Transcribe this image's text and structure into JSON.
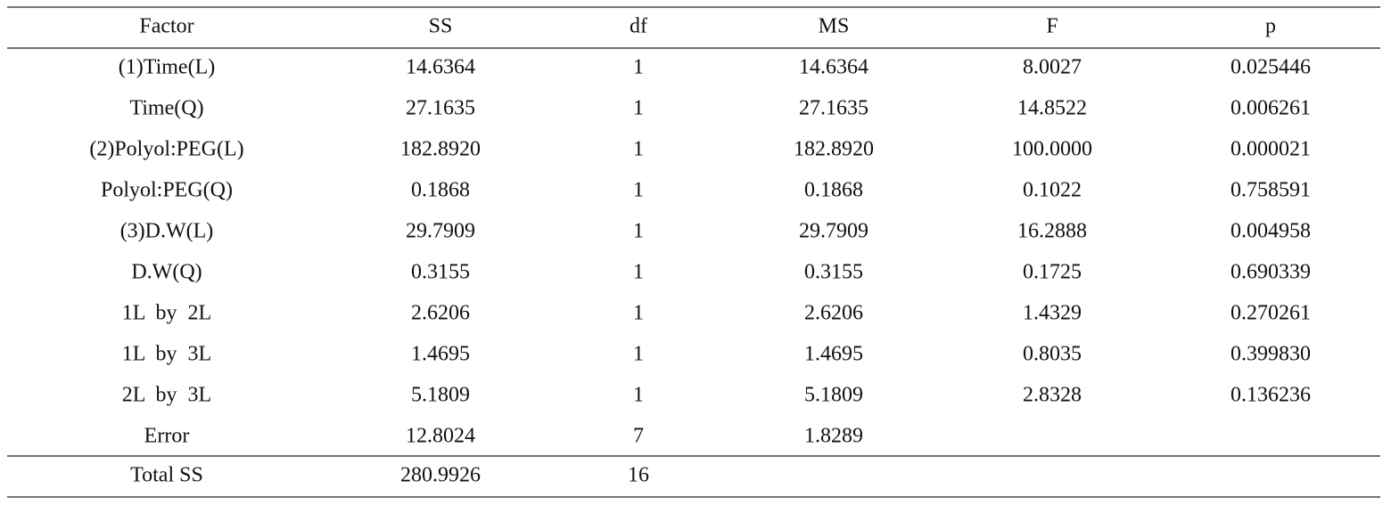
{
  "table": {
    "header": [
      "Factor",
      "SS",
      "df",
      "MS",
      "F",
      "p"
    ],
    "rows": [
      [
        "(1)Time(L)",
        "14.6364",
        "1",
        "14.6364",
        "8.0027",
        "0.025446"
      ],
      [
        "Time(Q)",
        "27.1635",
        "1",
        "27.1635",
        "14.8522",
        "0.006261"
      ],
      [
        "(2)Polyol:PEG(L)",
        "182.8920",
        "1",
        "182.8920",
        "100.0000",
        "0.000021"
      ],
      [
        "Polyol:PEG(Q)",
        "0.1868",
        "1",
        "0.1868",
        "0.1022",
        "0.758591"
      ],
      [
        "(3)D.W(L)",
        "29.7909",
        "1",
        "29.7909",
        "16.2888",
        "0.004958"
      ],
      [
        "D.W(Q)",
        "0.3155",
        "1",
        "0.3155",
        "0.1725",
        "0.690339"
      ],
      [
        "1L by 2L",
        "2.6206",
        "1",
        "2.6206",
        "1.4329",
        "0.270261"
      ],
      [
        "1L by 3L",
        "1.4695",
        "1",
        "1.4695",
        "0.8035",
        "0.399830"
      ],
      [
        "2L by 3L",
        "5.1809",
        "1",
        "5.1809",
        "2.8328",
        "0.136236"
      ],
      [
        "Error",
        "12.8024",
        "7",
        "1.8289"
      ]
    ],
    "total": [
      "Total SS",
      "280.9926",
      "16"
    ]
  }
}
